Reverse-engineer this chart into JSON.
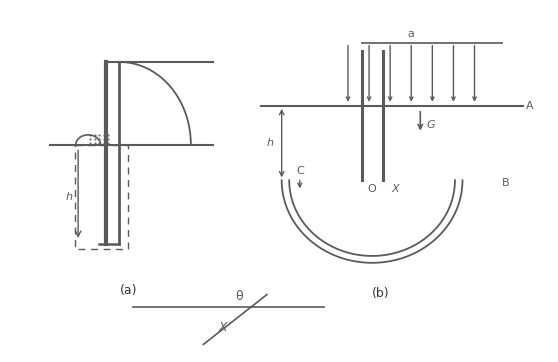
{
  "bg_color": "#ffffff",
  "line_color": "#5a5a5a",
  "fig_width": 5.58,
  "fig_height": 3.62,
  "dpi": 100,
  "label_a": "a",
  "label_A": "A",
  "label_b": "b",
  "label_B": "B",
  "label_C": "C",
  "label_G": "G",
  "label_O": "O",
  "label_X": "X",
  "label_h": "h",
  "label_theta": "θ",
  "label_fig_a": "(a)",
  "label_fig_b": "(b)"
}
